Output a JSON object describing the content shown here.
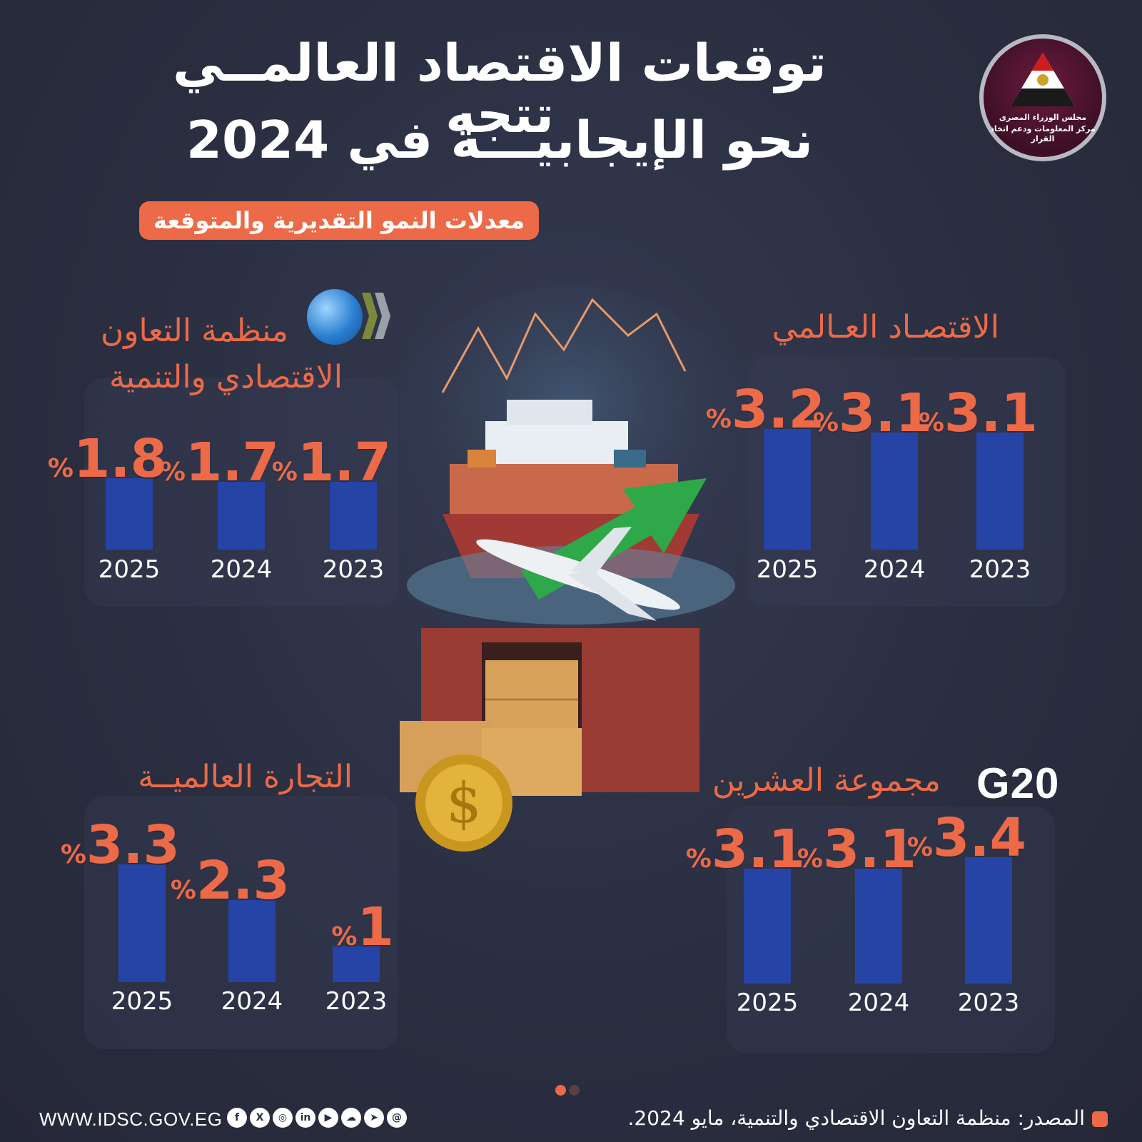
{
  "header": {
    "title_line1": "توقعات الاقتصاد العالمــي تتجه",
    "title_line2": "نحو الإيجابيـــة في 2024",
    "subtitle": "معدلات النمو التقديرية والمتوقعة"
  },
  "logo": {
    "line1": "مجلس الوزراء المصرى",
    "line2": "مركز المعلومات ودعم اتخاذ القرار"
  },
  "panels": {
    "world_economy": {
      "title": "الاقتصـاد العـالمي"
    },
    "oecd": {
      "title_line1": "منظمة التعاون",
      "title_line2": "الاقتصادي والتنمية"
    },
    "world_trade": {
      "title": "التجارة العالميــة"
    },
    "g20": {
      "title": "مجموعة العشرين",
      "badge": "G20"
    }
  },
  "chart_data": [
    {
      "type": "bar",
      "id": "world_economy",
      "title": "الاقتصـاد العـالمي",
      "categories": [
        "2023",
        "2024",
        "2025"
      ],
      "values": [
        3.1,
        3.1,
        3.2
      ],
      "unit": "%",
      "ylim": [
        0,
        3.6
      ]
    },
    {
      "type": "bar",
      "id": "oecd",
      "title": "منظمة التعاون الاقتصادي والتنمية",
      "categories": [
        "2023",
        "2024",
        "2025"
      ],
      "values": [
        1.7,
        1.7,
        1.8
      ],
      "unit": "%",
      "ylim": [
        0,
        2.6
      ]
    },
    {
      "type": "bar",
      "id": "world_trade",
      "title": "التجارة العالميــة",
      "categories": [
        "2023",
        "2024",
        "2025"
      ],
      "values": [
        1,
        2.3,
        3.3
      ],
      "unit": "%",
      "ylim": [
        0,
        3.8
      ]
    },
    {
      "type": "bar",
      "id": "g20",
      "title": "مجموعة العشرين",
      "categories": [
        "2023",
        "2024",
        "2025"
      ],
      "values": [
        3.4,
        3.1,
        3.1
      ],
      "unit": "%",
      "ylim": [
        0,
        3.75
      ]
    }
  ],
  "footer": {
    "url": "WWW.IDSC.GOV.EG",
    "source": "المصدر: منظمة التعاون الاقتصادي والتنمية، مايو 2024.",
    "social_icons": [
      "facebook-icon",
      "x-icon",
      "instagram-icon",
      "linkedin-icon",
      "youtube-icon",
      "soundcloud-icon",
      "telegram-icon",
      "threads-icon"
    ]
  },
  "colors": {
    "accent": "#ec6a47",
    "bar": "#2643a6",
    "background": "#2a2e40"
  }
}
